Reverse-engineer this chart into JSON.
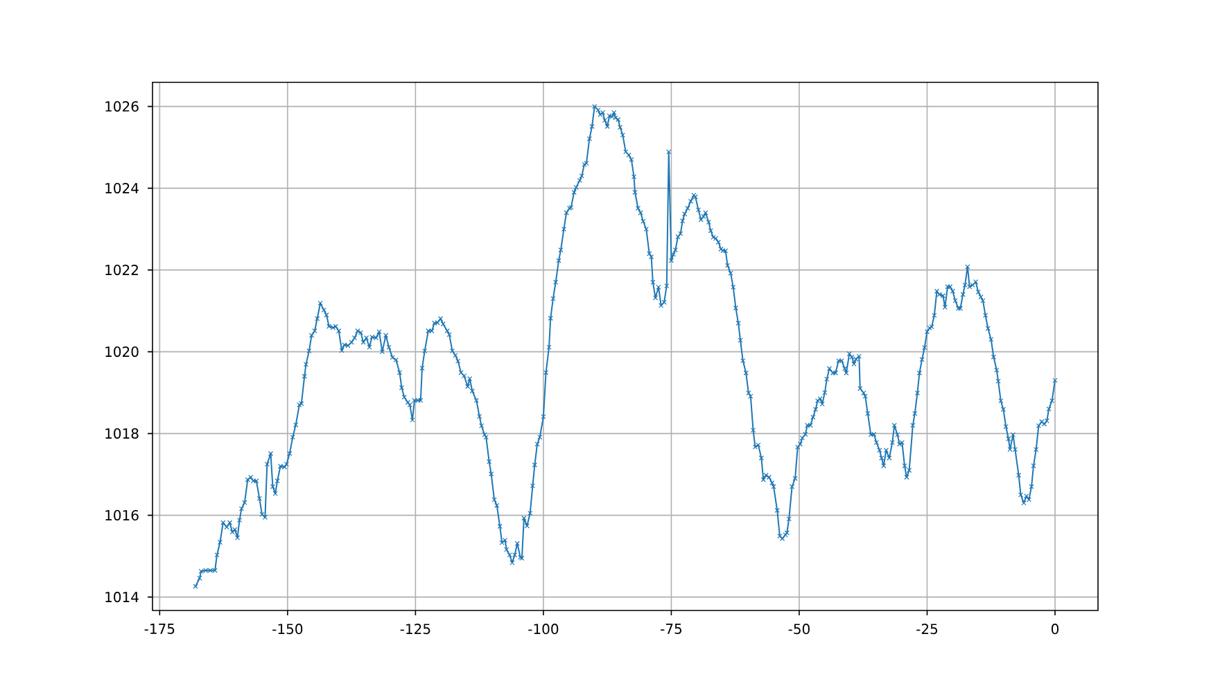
{
  "chart_data": {
    "type": "line",
    "color": "#1f77b4",
    "marker": "cross",
    "line_style": "solid",
    "grid": true,
    "xlim": [
      -176.4,
      8.4
    ],
    "ylim": [
      1013.67,
      1026.59
    ],
    "xticks": [
      -175,
      -150,
      -125,
      -100,
      -75,
      -50,
      -25,
      0
    ],
    "yticks": [
      1014,
      1016,
      1018,
      1020,
      1022,
      1024,
      1026
    ],
    "x": [
      -168.0,
      -167.2,
      -166.9,
      -166.0,
      -165.1,
      -164.2,
      -163.8,
      -163.2,
      -162.6,
      -161.9,
      -161.3,
      -160.8,
      -160.3,
      -159.8,
      -159.4,
      -159.0,
      -158.4,
      -157.8,
      -157.2,
      -156.7,
      -156.1,
      -155.5,
      -155.0,
      -154.4,
      -154.0,
      -153.3,
      -152.9,
      -152.4,
      -152.0,
      -151.4,
      -150.6,
      -150.2,
      -149.6,
      -149.0,
      -148.4,
      -147.7,
      -147.3,
      -146.7,
      -146.4,
      -145.8,
      -145.3,
      -144.7,
      -144.2,
      -143.6,
      -142.9,
      -142.4,
      -141.9,
      -141.1,
      -140.6,
      -140.0,
      -139.4,
      -138.9,
      -138.2,
      -137.5,
      -136.9,
      -136.3,
      -135.7,
      -135.2,
      -134.6,
      -134.0,
      -133.5,
      -132.7,
      -132.1,
      -131.5,
      -130.8,
      -130.2,
      -129.5,
      -128.8,
      -128.1,
      -127.7,
      -127.2,
      -126.5,
      -126.1,
      -125.6,
      -125.2,
      -124.5,
      -124.0,
      -123.7,
      -123.2,
      -122.5,
      -121.8,
      -121.3,
      -120.7,
      -120.1,
      -119.6,
      -118.8,
      -118.4,
      -117.8,
      -117.2,
      -116.7,
      -116.1,
      -115.5,
      -114.8,
      -114.4,
      -113.9,
      -113.1,
      -112.5,
      -112.1,
      -111.5,
      -111.2,
      -110.6,
      -110.2,
      -109.6,
      -109.1,
      -108.5,
      -108.1,
      -107.5,
      -107.2,
      -106.6,
      -106.1,
      -105.6,
      -105.1,
      -104.5,
      -104.2,
      -103.8,
      -103.2,
      -102.6,
      -102.1,
      -101.7,
      -101.2,
      -100.7,
      -100.0,
      -99.5,
      -98.9,
      -98.6,
      -98.1,
      -97.6,
      -97.0,
      -96.6,
      -96.0,
      -95.5,
      -94.9,
      -94.6,
      -94.0,
      -93.6,
      -92.9,
      -92.5,
      -92.0,
      -91.6,
      -91.0,
      -90.5,
      -90.0,
      -89.3,
      -88.9,
      -88.4,
      -88.0,
      -87.5,
      -87.1,
      -86.6,
      -86.2,
      -85.9,
      -85.4,
      -85.0,
      -84.5,
      -83.9,
      -83.3,
      -82.8,
      -82.3,
      -82.1,
      -81.5,
      -81.0,
      -80.5,
      -79.9,
      -79.3,
      -78.9,
      -78.6,
      -78.1,
      -77.5,
      -77.0,
      -76.4,
      -75.9,
      -75.5,
      -75.0,
      -74.6,
      -74.2,
      -73.7,
      -73.2,
      -72.8,
      -72.4,
      -71.8,
      -71.2,
      -70.6,
      -70.3,
      -69.7,
      -69.2,
      -68.7,
      -68.3,
      -67.7,
      -67.3,
      -66.8,
      -66.3,
      -65.8,
      -65.3,
      -64.9,
      -64.4,
      -64.0,
      -63.4,
      -62.9,
      -62.4,
      -61.9,
      -61.5,
      -61.0,
      -60.4,
      -59.9,
      -59.5,
      -59.0,
      -58.6,
      -58.0,
      -57.4,
      -57.0,
      -56.5,
      -55.9,
      -55.3,
      -55.0,
      -54.3,
      -53.8,
      -53.3,
      -52.7,
      -52.4,
      -52.0,
      -51.4,
      -50.8,
      -50.3,
      -49.8,
      -49.4,
      -48.8,
      -48.4,
      -47.8,
      -47.3,
      -46.8,
      -46.4,
      -45.9,
      -45.5,
      -45.0,
      -44.6,
      -44.1,
      -43.4,
      -42.9,
      -42.3,
      -41.7,
      -41.1,
      -40.8,
      -40.2,
      -39.7,
      -39.3,
      -38.9,
      -38.3,
      -38.1,
      -37.4,
      -37.1,
      -36.6,
      -36.0,
      -35.4,
      -34.9,
      -34.3,
      -33.9,
      -33.5,
      -33.0,
      -32.4,
      -31.8,
      -31.4,
      -30.8,
      -30.4,
      -29.9,
      -29.4,
      -29.0,
      -28.5,
      -27.8,
      -27.4,
      -26.9,
      -26.5,
      -26.0,
      -25.5,
      -25.0,
      -24.5,
      -24.1,
      -23.6,
      -23.1,
      -22.6,
      -21.9,
      -21.5,
      -21.0,
      -20.5,
      -20.0,
      -19.5,
      -18.9,
      -18.5,
      -18.0,
      -17.6,
      -17.1,
      -16.7,
      -16.1,
      -15.5,
      -15.0,
      -14.5,
      -14.1,
      -13.6,
      -13.1,
      -12.5,
      -12.0,
      -11.4,
      -11.1,
      -10.6,
      -10.1,
      -9.6,
      -9.1,
      -8.8,
      -8.2,
      -7.8,
      -7.1,
      -6.7,
      -6.1,
      -5.6,
      -5.1,
      -4.6,
      -4.2,
      -3.7,
      -3.2,
      -2.6,
      -2.1,
      -1.6,
      -1.2,
      -0.6,
      0.0
    ],
    "values": [
      1014.26,
      1014.46,
      1014.63,
      1014.65,
      1014.65,
      1014.65,
      1015.03,
      1015.34,
      1015.82,
      1015.71,
      1015.82,
      1015.59,
      1015.65,
      1015.45,
      1015.88,
      1016.16,
      1016.31,
      1016.87,
      1016.93,
      1016.84,
      1016.84,
      1016.41,
      1016.02,
      1015.95,
      1017.25,
      1017.51,
      1016.7,
      1016.53,
      1016.84,
      1017.2,
      1017.18,
      1017.25,
      1017.51,
      1017.91,
      1018.21,
      1018.7,
      1018.73,
      1019.4,
      1019.69,
      1020.02,
      1020.4,
      1020.51,
      1020.81,
      1021.19,
      1021.02,
      1020.9,
      1020.62,
      1020.59,
      1020.62,
      1020.51,
      1020.03,
      1020.17,
      1020.15,
      1020.23,
      1020.34,
      1020.51,
      1020.47,
      1020.23,
      1020.34,
      1020.11,
      1020.36,
      1020.34,
      1020.49,
      1020.0,
      1020.4,
      1020.11,
      1019.86,
      1019.8,
      1019.49,
      1019.12,
      1018.89,
      1018.76,
      1018.7,
      1018.33,
      1018.81,
      1018.81,
      1018.81,
      1019.6,
      1020.02,
      1020.51,
      1020.51,
      1020.7,
      1020.71,
      1020.81,
      1020.68,
      1020.51,
      1020.42,
      1020.02,
      1019.91,
      1019.77,
      1019.49,
      1019.41,
      1019.15,
      1019.34,
      1019.04,
      1018.81,
      1018.42,
      1018.19,
      1017.97,
      1017.91,
      1017.31,
      1017.01,
      1016.38,
      1016.24,
      1015.73,
      1015.33,
      1015.39,
      1015.16,
      1015.03,
      1014.84,
      1015.03,
      1015.31,
      1014.97,
      1014.95,
      1015.93,
      1015.74,
      1016.05,
      1016.72,
      1017.23,
      1017.74,
      1017.91,
      1018.41,
      1019.49,
      1020.11,
      1020.82,
      1021.3,
      1021.7,
      1022.23,
      1022.49,
      1023.0,
      1023.4,
      1023.51,
      1023.53,
      1023.9,
      1024.02,
      1024.19,
      1024.3,
      1024.58,
      1024.61,
      1025.21,
      1025.51,
      1026.0,
      1025.91,
      1025.8,
      1025.85,
      1025.66,
      1025.51,
      1025.77,
      1025.75,
      1025.85,
      1025.72,
      1025.68,
      1025.49,
      1025.3,
      1024.89,
      1024.81,
      1024.7,
      1024.28,
      1023.9,
      1023.51,
      1023.4,
      1023.19,
      1023.0,
      1022.4,
      1022.32,
      1021.7,
      1021.32,
      1021.58,
      1021.13,
      1021.21,
      1021.61,
      1024.89,
      1022.23,
      1022.38,
      1022.49,
      1022.81,
      1022.89,
      1023.2,
      1023.37,
      1023.51,
      1023.68,
      1023.83,
      1023.79,
      1023.47,
      1023.23,
      1023.31,
      1023.4,
      1023.17,
      1022.96,
      1022.8,
      1022.77,
      1022.68,
      1022.51,
      1022.47,
      1022.47,
      1022.11,
      1021.92,
      1021.58,
      1021.07,
      1020.7,
      1020.28,
      1019.78,
      1019.48,
      1018.99,
      1018.91,
      1018.08,
      1017.67,
      1017.72,
      1017.4,
      1016.87,
      1016.98,
      1016.93,
      1016.79,
      1016.7,
      1016.12,
      1015.49,
      1015.43,
      1015.52,
      1015.57,
      1015.91,
      1016.7,
      1016.9,
      1017.67,
      1017.74,
      1017.89,
      1017.98,
      1018.2,
      1018.2,
      1018.4,
      1018.59,
      1018.8,
      1018.85,
      1018.72,
      1019.0,
      1019.33,
      1019.59,
      1019.48,
      1019.48,
      1019.78,
      1019.78,
      1019.59,
      1019.48,
      1019.95,
      1019.87,
      1019.7,
      1019.82,
      1019.89,
      1019.1,
      1018.99,
      1018.91,
      1018.49,
      1017.97,
      1017.98,
      1017.78,
      1017.59,
      1017.4,
      1017.21,
      1017.59,
      1017.4,
      1017.78,
      1018.2,
      1017.97,
      1017.74,
      1017.78,
      1017.21,
      1016.93,
      1017.1,
      1018.2,
      1018.49,
      1018.99,
      1019.48,
      1019.81,
      1020.1,
      1020.49,
      1020.58,
      1020.61,
      1020.89,
      1021.48,
      1021.4,
      1021.37,
      1021.09,
      1021.59,
      1021.59,
      1021.48,
      1021.25,
      1021.06,
      1021.06,
      1021.4,
      1021.63,
      1022.08,
      1021.59,
      1021.63,
      1021.71,
      1021.46,
      1021.34,
      1021.25,
      1020.89,
      1020.57,
      1020.3,
      1019.87,
      1019.55,
      1019.28,
      1018.8,
      1018.59,
      1018.17,
      1017.87,
      1017.61,
      1017.97,
      1017.61,
      1016.98,
      1016.5,
      1016.3,
      1016.47,
      1016.38,
      1016.7,
      1017.21,
      1017.61,
      1018.19,
      1018.29,
      1018.23,
      1018.31,
      1018.6,
      1018.8,
      1019.3
    ]
  }
}
